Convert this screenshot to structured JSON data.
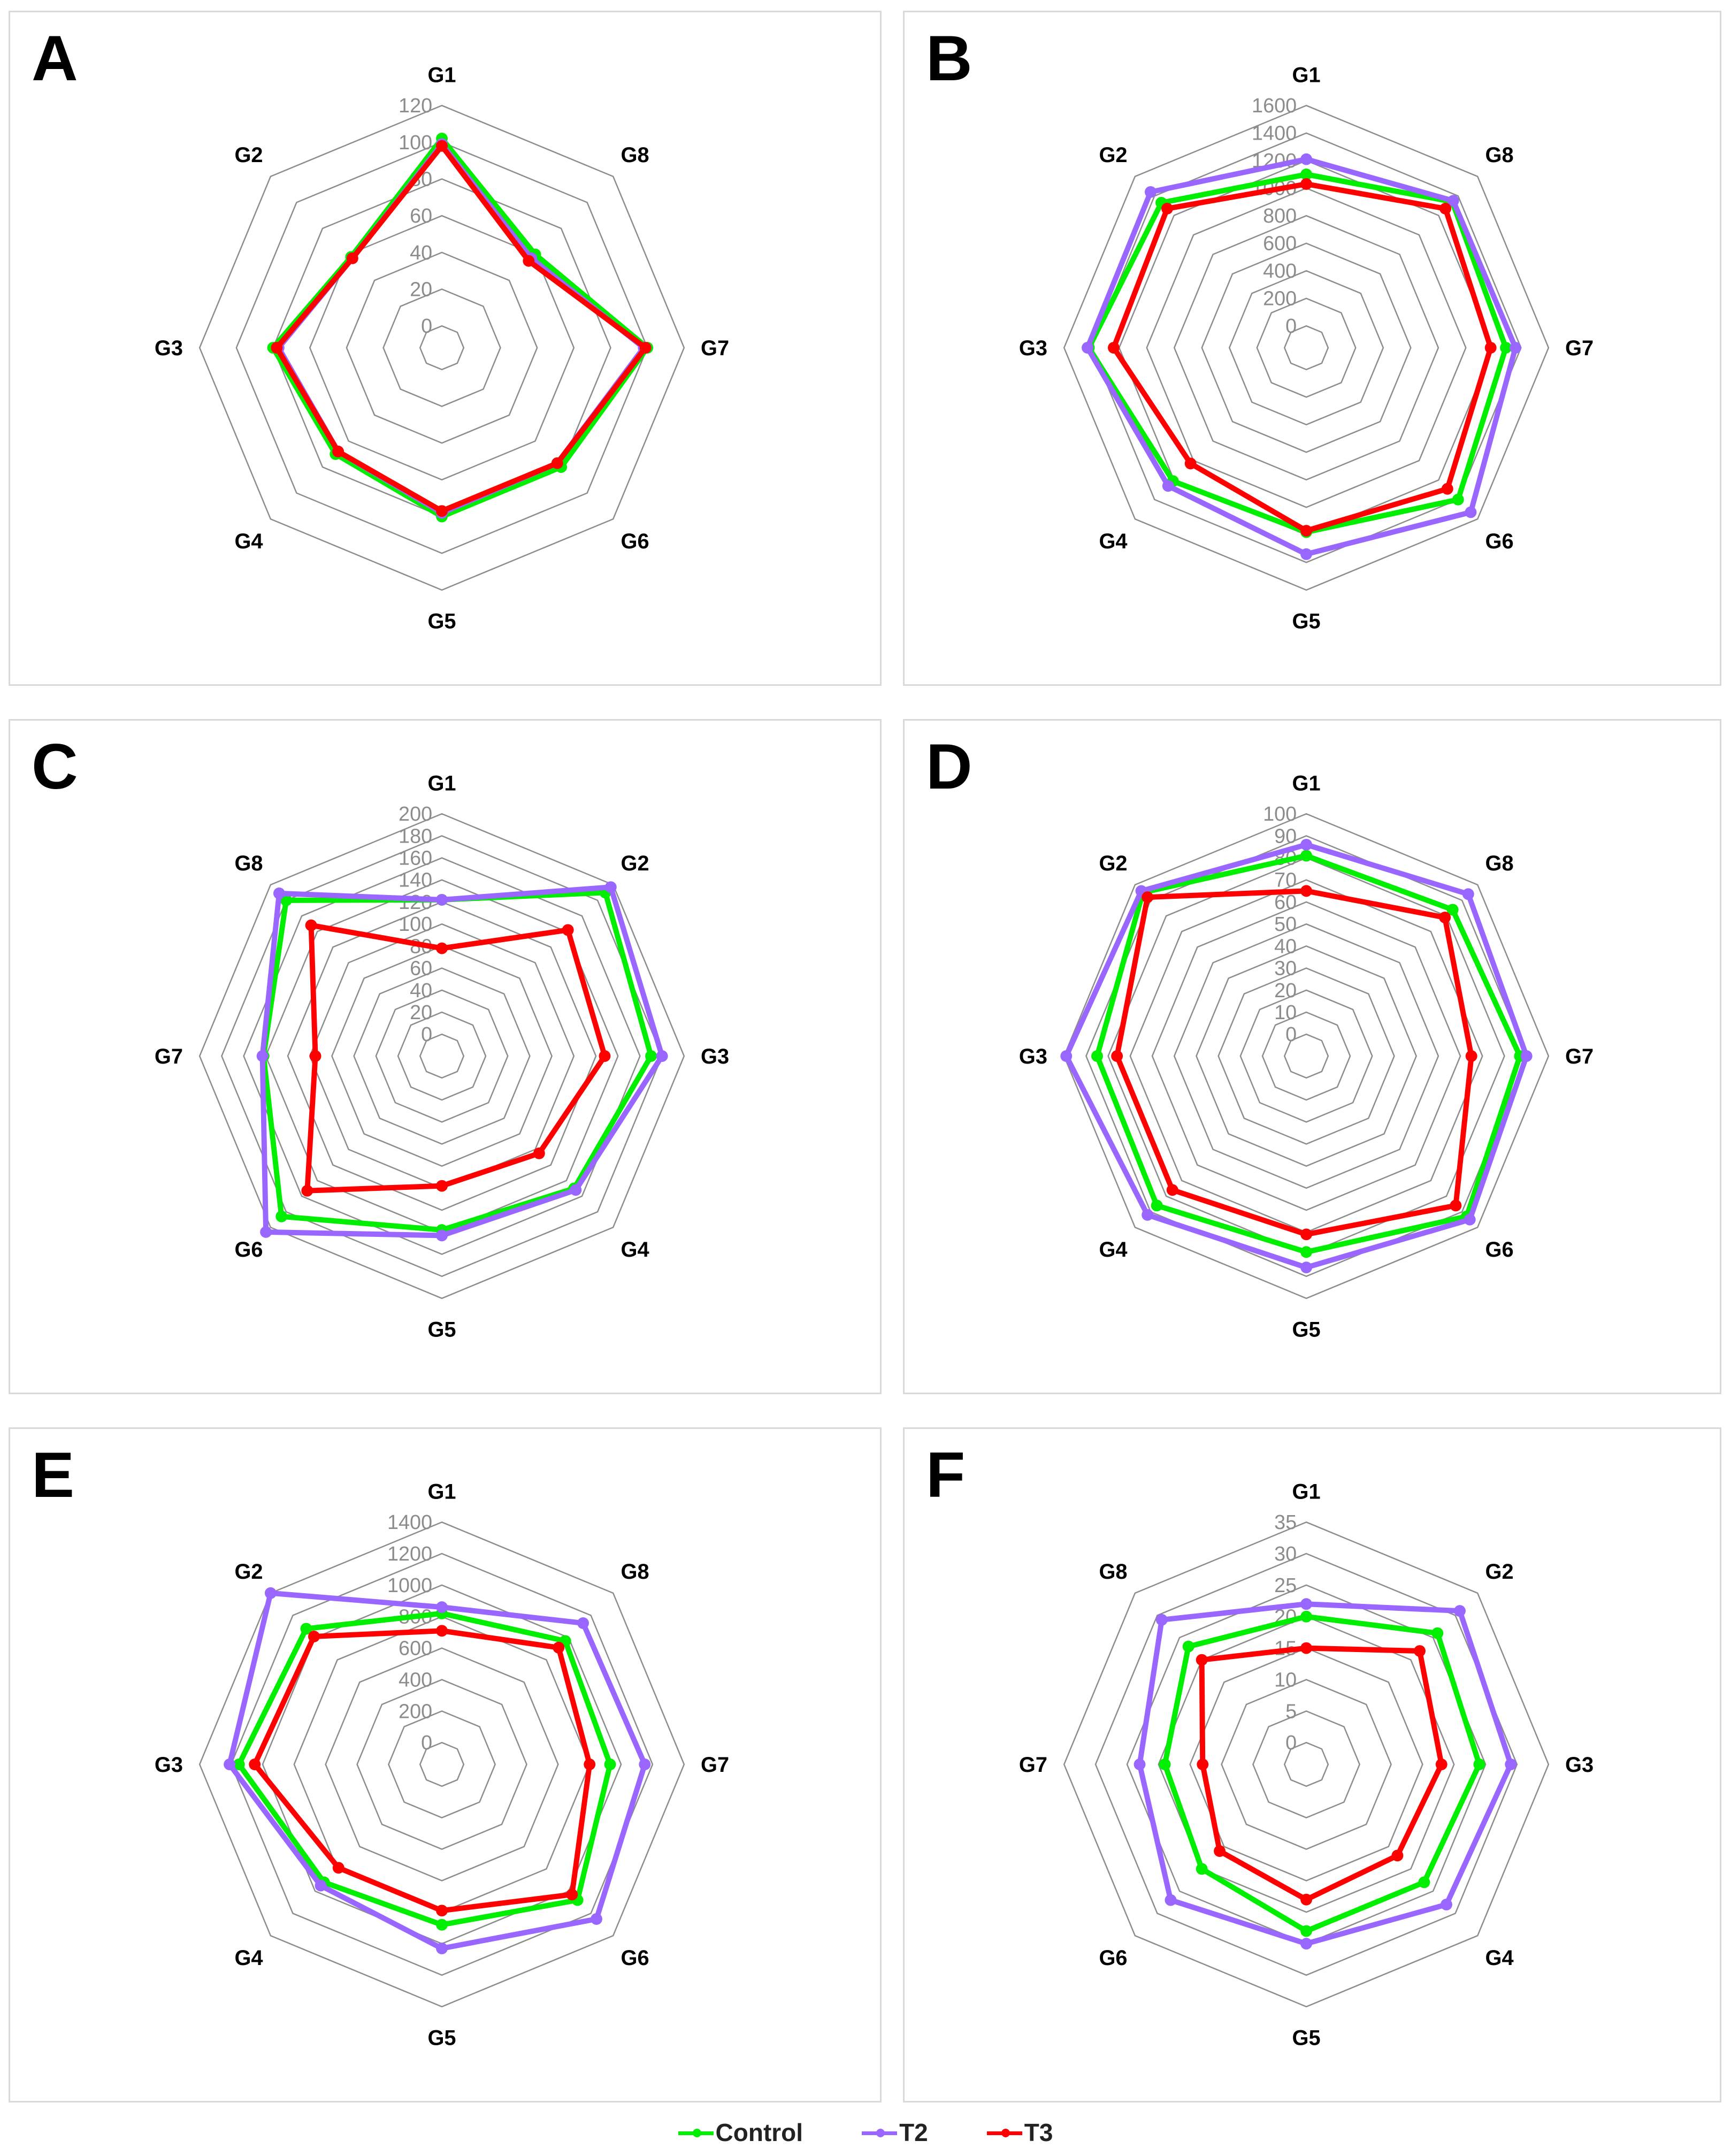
{
  "legend": {
    "items": [
      {
        "label": "Control",
        "color": "#00ee00"
      },
      {
        "label": "T2",
        "color": "#9966ff"
      },
      {
        "label": "T3",
        "color": "#ff0000"
      }
    ]
  },
  "chart_data": [
    {
      "panel": "A",
      "type": "radar",
      "axes": [
        "G1",
        "G8",
        "G7",
        "G6",
        "G5",
        "G4",
        "G3",
        "G2"
      ],
      "rmax": 120,
      "ticks": [
        0,
        20,
        40,
        60,
        80,
        100,
        120
      ],
      "series": [
        {
          "name": "Control",
          "values": [
            102,
            60,
            100,
            80,
            80,
            70,
            80,
            58
          ]
        },
        {
          "name": "T2",
          "values": [
            99,
            57,
            98,
            77,
            78,
            68,
            77,
            57
          ]
        },
        {
          "name": "T3",
          "values": [
            98,
            55,
            99,
            77,
            77,
            68,
            78,
            57
          ]
        }
      ]
    },
    {
      "panel": "B",
      "type": "radar",
      "axes": [
        "G1",
        "G8",
        "G7",
        "G6",
        "G5",
        "G4",
        "G3",
        "G2"
      ],
      "rmax": 1600,
      "ticks": [
        0,
        200,
        400,
        600,
        800,
        1000,
        1200,
        1400,
        1600
      ],
      "series": [
        {
          "name": "Control",
          "values": [
            1100,
            1340,
            1290,
            1400,
            1180,
            1210,
            1420,
            1330
          ]
        },
        {
          "name": "T2",
          "values": [
            1210,
            1350,
            1360,
            1530,
            1340,
            1260,
            1430,
            1440
          ]
        },
        {
          "name": "T3",
          "values": [
            1030,
            1270,
            1180,
            1290,
            1170,
            1030,
            1240,
            1270
          ]
        }
      ]
    },
    {
      "panel": "C",
      "type": "radar",
      "axes": [
        "G1",
        "G2",
        "G3",
        "G4",
        "G5",
        "G6",
        "G7",
        "G8"
      ],
      "rmax": 200,
      "ticks": [
        0,
        20,
        40,
        60,
        80,
        100,
        120,
        140,
        160,
        180,
        200
      ],
      "series": [
        {
          "name": "Control",
          "values": [
            122,
            190,
            170,
            150,
            138,
            186,
            142,
            180
          ]
        },
        {
          "name": "T2",
          "values": [
            122,
            197,
            180,
            152,
            143,
            206,
            143,
            189
          ]
        },
        {
          "name": "T3",
          "values": [
            78,
            142,
            128,
            105,
            98,
            153,
            95,
            148
          ]
        }
      ]
    },
    {
      "panel": "D",
      "type": "radar",
      "axes": [
        "G1",
        "G8",
        "G7",
        "G6",
        "G5",
        "G4",
        "G3",
        "G2"
      ],
      "rmax": 100,
      "ticks": [
        0,
        10,
        20,
        30,
        40,
        50,
        60,
        70,
        80,
        90,
        100
      ],
      "series": [
        {
          "name": "Control",
          "values": [
            81,
            84,
            87,
            93,
            79,
            86,
            85,
            95
          ]
        },
        {
          "name": "T2",
          "values": [
            86,
            94,
            90,
            95,
            86,
            92,
            99,
            96
          ]
        },
        {
          "name": "T3",
          "values": [
            65,
            79,
            65,
            86,
            71,
            76,
            76,
            92
          ]
        }
      ]
    },
    {
      "panel": "E",
      "type": "radar",
      "axes": [
        "G1",
        "G8",
        "G7",
        "G6",
        "G5",
        "G4",
        "G3",
        "G2"
      ],
      "rmax": 1400,
      "ticks": [
        0,
        200,
        400,
        600,
        800,
        1000,
        1200,
        1400
      ],
      "series": [
        {
          "name": "Control",
          "values": [
            820,
            970,
            930,
            1080,
            880,
            920,
            1150,
            1080
          ]
        },
        {
          "name": "T2",
          "values": [
            860,
            1130,
            1150,
            1250,
            1030,
            950,
            1210,
            1400
          ]
        },
        {
          "name": "T3",
          "values": [
            710,
            910,
            800,
            1030,
            790,
            790,
            1050,
            1010
          ]
        }
      ]
    },
    {
      "panel": "F",
      "type": "radar",
      "axes": [
        "G1",
        "G2",
        "G3",
        "G4",
        "G5",
        "G6",
        "G7",
        "G8"
      ],
      "rmax": 35,
      "ticks": [
        0,
        5,
        10,
        15,
        20,
        25,
        30,
        35
      ],
      "series": [
        {
          "name": "Control",
          "values": [
            20,
            26,
            24,
            23,
            23,
            20,
            19,
            23
          ]
        },
        {
          "name": "T2",
          "values": [
            22,
            31,
            29,
            28,
            25,
            27,
            23,
            29
          ]
        },
        {
          "name": "T3",
          "values": [
            15,
            22,
            18,
            17,
            18,
            16,
            13,
            20
          ]
        }
      ]
    }
  ]
}
